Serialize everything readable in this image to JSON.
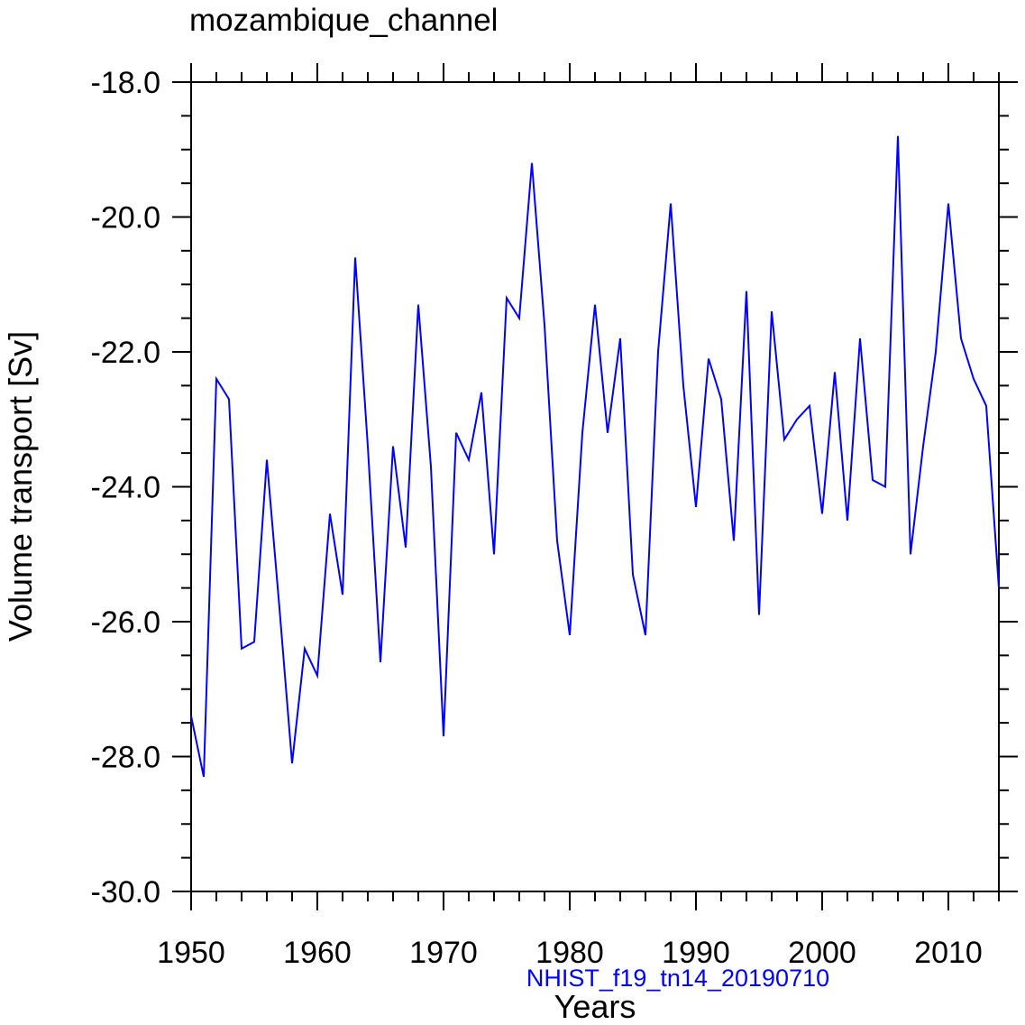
{
  "chart_data": {
    "type": "line",
    "title": "mozambique_channel",
    "xlabel": "Years",
    "ylabel": "Volume transport [Sv]",
    "subtitle": "NHIST_f19_tn14_20190710",
    "xlim": [
      1950,
      2014
    ],
    "ylim": [
      -30.0,
      -18.0
    ],
    "x_ticks": [
      1950,
      1960,
      1970,
      1980,
      1990,
      2000,
      2010
    ],
    "x_tick_labels": [
      "1950",
      "1960",
      "1970",
      "1980",
      "1990",
      "2000",
      "2010"
    ],
    "y_ticks": [
      -30.0,
      -28.0,
      -26.0,
      -24.0,
      -22.0,
      -20.0,
      -18.0
    ],
    "y_tick_labels": [
      "-30.0",
      "-28.0",
      "-26.0",
      "-24.0",
      "-22.0",
      "-20.0",
      "-18.0"
    ],
    "x_minor_step": 2,
    "y_minor_step": 0.5,
    "series": [
      {
        "name": "mozambique_channel",
        "color": "#0000ff",
        "x": [
          1950,
          1951,
          1952,
          1953,
          1954,
          1955,
          1956,
          1957,
          1958,
          1959,
          1960,
          1961,
          1962,
          1963,
          1964,
          1965,
          1966,
          1967,
          1968,
          1969,
          1970,
          1971,
          1972,
          1973,
          1974,
          1975,
          1976,
          1977,
          1978,
          1979,
          1980,
          1981,
          1982,
          1983,
          1984,
          1985,
          1986,
          1987,
          1988,
          1989,
          1990,
          1991,
          1992,
          1993,
          1994,
          1995,
          1996,
          1997,
          1998,
          1999,
          2000,
          2001,
          2002,
          2003,
          2004,
          2005,
          2006,
          2007,
          2008,
          2009,
          2010,
          2011,
          2012,
          2013,
          2014
        ],
        "values": [
          -27.4,
          -28.3,
          -22.4,
          -22.7,
          -26.4,
          -26.3,
          -23.6,
          -25.8,
          -28.1,
          -26.4,
          -26.8,
          -24.4,
          -25.6,
          -20.6,
          -23.4,
          -26.6,
          -23.4,
          -24.9,
          -21.3,
          -23.7,
          -27.7,
          -23.2,
          -23.6,
          -22.6,
          -25.0,
          -21.2,
          -21.5,
          -19.2,
          -21.6,
          -24.8,
          -26.2,
          -23.2,
          -21.3,
          -23.2,
          -21.8,
          -25.3,
          -26.2,
          -22.0,
          -19.8,
          -22.5,
          -24.3,
          -22.1,
          -22.7,
          -24.8,
          -21.1,
          -25.9,
          -21.4,
          -23.3,
          -23.0,
          -22.8,
          -24.4,
          -22.3,
          -24.5,
          -21.8,
          -23.9,
          -24.0,
          -18.8,
          -25.0,
          -23.4,
          -22.0,
          -19.8,
          -21.8,
          -22.4,
          -22.8,
          -25.5
        ]
      }
    ]
  }
}
